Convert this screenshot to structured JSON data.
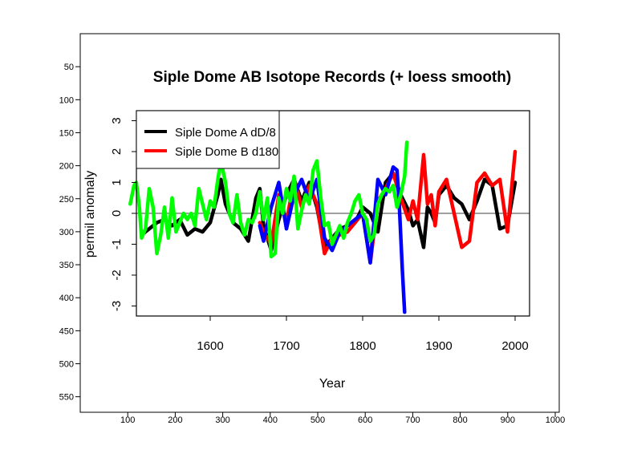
{
  "outer_axes": {
    "x_ticks": [
      100,
      200,
      300,
      400,
      500,
      600,
      700,
      800,
      900,
      1000
    ],
    "y_ticks": [
      50,
      100,
      150,
      200,
      250,
      300,
      350,
      400,
      450,
      500,
      550
    ]
  },
  "chart_data": {
    "type": "line",
    "title": "Siple Dome AB Isotope Records (+ loess smooth)",
    "xlabel": "Year",
    "ylabel": "permil anomaly",
    "x_ticks": [
      1600,
      1700,
      1800,
      1900,
      2000
    ],
    "y_ticks": [
      -3,
      -2,
      -1,
      0,
      1,
      2,
      3
    ],
    "xlim": [
      1510,
      2020
    ],
    "ylim": [
      -3.2,
      3.2
    ],
    "zero_line": 0,
    "legend": {
      "position": "top-left",
      "entries": [
        {
          "label": "Siple Dome A dD/8",
          "color": "#000000"
        },
        {
          "label": "Siple Dome B d180",
          "color": "#ff0000"
        }
      ]
    },
    "series": [
      {
        "name": "Siple Dome A dD/8",
        "role": "smooth",
        "color": "#000000",
        "x": [
          1510,
          1520,
          1530,
          1540,
          1550,
          1560,
          1570,
          1580,
          1590,
          1600,
          1610,
          1614,
          1620,
          1630,
          1640,
          1650,
          1660,
          1665,
          1670,
          1680,
          1690,
          1700,
          1710,
          1720,
          1730,
          1740,
          1750,
          1760,
          1770,
          1780,
          1790,
          1800,
          1810,
          1820,
          1830,
          1840,
          1850,
          1860,
          1866,
          1872,
          1880,
          1885,
          1890,
          1895,
          1900,
          1910,
          1920,
          1930,
          1940,
          1950,
          1960,
          1970,
          1980,
          1990,
          2000
        ],
        "y": [
          -0.7,
          -0.5,
          -0.3,
          -0.2,
          -0.4,
          -0.2,
          -0.7,
          -0.5,
          -0.6,
          -0.3,
          0.6,
          1.1,
          0.3,
          -0.3,
          -0.5,
          -0.9,
          0.5,
          0.8,
          -0.4,
          -1.2,
          -0.2,
          0.6,
          1.1,
          0.4,
          1.0,
          0.2,
          -1.1,
          -0.8,
          -0.5,
          -0.4,
          -0.3,
          0.2,
          0.0,
          -0.6,
          1.0,
          1.3,
          0.6,
          0.1,
          -0.4,
          -0.2,
          -1.1,
          0.2,
          0.0,
          -0.3,
          0.6,
          0.9,
          0.5,
          0.3,
          -0.2,
          0.4,
          1.1,
          0.9,
          -0.5,
          -0.4,
          1.0
        ]
      },
      {
        "name": "Siple Dome B d180",
        "role": "smooth",
        "color": "#ff0000",
        "x": [
          1665,
          1670,
          1680,
          1690,
          1700,
          1710,
          1720,
          1730,
          1740,
          1750,
          1760,
          1770,
          1780,
          1790,
          1800,
          1810,
          1820,
          1830,
          1840,
          1850,
          1860,
          1866,
          1872,
          1880,
          1885,
          1890,
          1895,
          1900,
          1910,
          1920,
          1930,
          1940,
          1950,
          1960,
          1970,
          1980,
          1990,
          2000
        ],
        "y": [
          -0.3,
          -0.6,
          -1.0,
          0.6,
          -0.3,
          1.1,
          0.2,
          0.9,
          0.3,
          -1.3,
          -0.8,
          -0.7,
          -0.6,
          -0.3,
          0.0,
          -1.6,
          0.4,
          0.8,
          1.3,
          0.5,
          -0.2,
          0.4,
          -0.2,
          1.9,
          0.3,
          0.6,
          -0.4,
          0.7,
          1.1,
          0.0,
          -1.1,
          -0.9,
          1.0,
          1.3,
          0.9,
          1.1,
          -0.6,
          2.0
        ]
      },
      {
        "role": "smooth",
        "color": "#0000ff",
        "x": [
          1665,
          1670,
          1680,
          1690,
          1700,
          1710,
          1720,
          1730,
          1740,
          1750,
          1760,
          1770,
          1780,
          1790,
          1800,
          1810,
          1820,
          1830,
          1840,
          1845,
          1848,
          1852,
          1855
        ],
        "y": [
          -0.4,
          -0.9,
          0.2,
          1.0,
          -0.5,
          0.6,
          1.1,
          0.4,
          1.1,
          -0.8,
          -1.2,
          -0.6,
          -0.4,
          -0.2,
          0.0,
          -1.6,
          1.1,
          0.6,
          1.5,
          1.4,
          0.3,
          -1.8,
          -3.2
        ]
      },
      {
        "role": "smooth",
        "color": "#00ff00",
        "x": [
          1495,
          1500,
          1503,
          1507,
          1510,
          1515,
          1520,
          1525,
          1530,
          1535,
          1540,
          1545,
          1550,
          1555,
          1560,
          1565,
          1570,
          1575,
          1580,
          1585,
          1590,
          1595,
          1600,
          1605,
          1610,
          1614,
          1620,
          1625,
          1630,
          1635,
          1640,
          1645,
          1650,
          1655,
          1660,
          1665,
          1670,
          1675,
          1680,
          1685,
          1690,
          1695,
          1700,
          1705,
          1710,
          1715,
          1720,
          1725,
          1730,
          1735,
          1740,
          1745,
          1750,
          1755,
          1760,
          1765,
          1770,
          1775,
          1780,
          1785,
          1790,
          1795,
          1800,
          1805,
          1810,
          1815,
          1820,
          1825,
          1830,
          1835,
          1840,
          1845,
          1850,
          1855,
          1858
        ],
        "y": [
          0.3,
          0.9,
          1.0,
          0.2,
          -0.8,
          -0.5,
          0.8,
          0.2,
          -1.3,
          -0.7,
          0.2,
          -0.8,
          0.5,
          -0.6,
          -0.3,
          0.0,
          -0.2,
          0.0,
          -0.4,
          0.8,
          0.3,
          -0.2,
          0.4,
          0.2,
          1.1,
          1.7,
          1.0,
          0.0,
          -0.3,
          0.6,
          -0.3,
          -0.7,
          -0.2,
          -0.3,
          0.0,
          0.7,
          -0.2,
          0.5,
          -1.4,
          -1.3,
          0.5,
          0.0,
          0.8,
          0.4,
          1.2,
          -0.5,
          0.1,
          0.6,
          0.3,
          1.4,
          1.7,
          0.5,
          -0.4,
          -0.3,
          -1.0,
          -0.7,
          -0.4,
          -0.8,
          -0.3,
          0.0,
          0.4,
          0.6,
          0.0,
          -0.2,
          -0.9,
          -0.7,
          0.3,
          0.6,
          0.8,
          0.7,
          0.9,
          0.2,
          0.6,
          1.2,
          2.3
        ]
      }
    ]
  }
}
